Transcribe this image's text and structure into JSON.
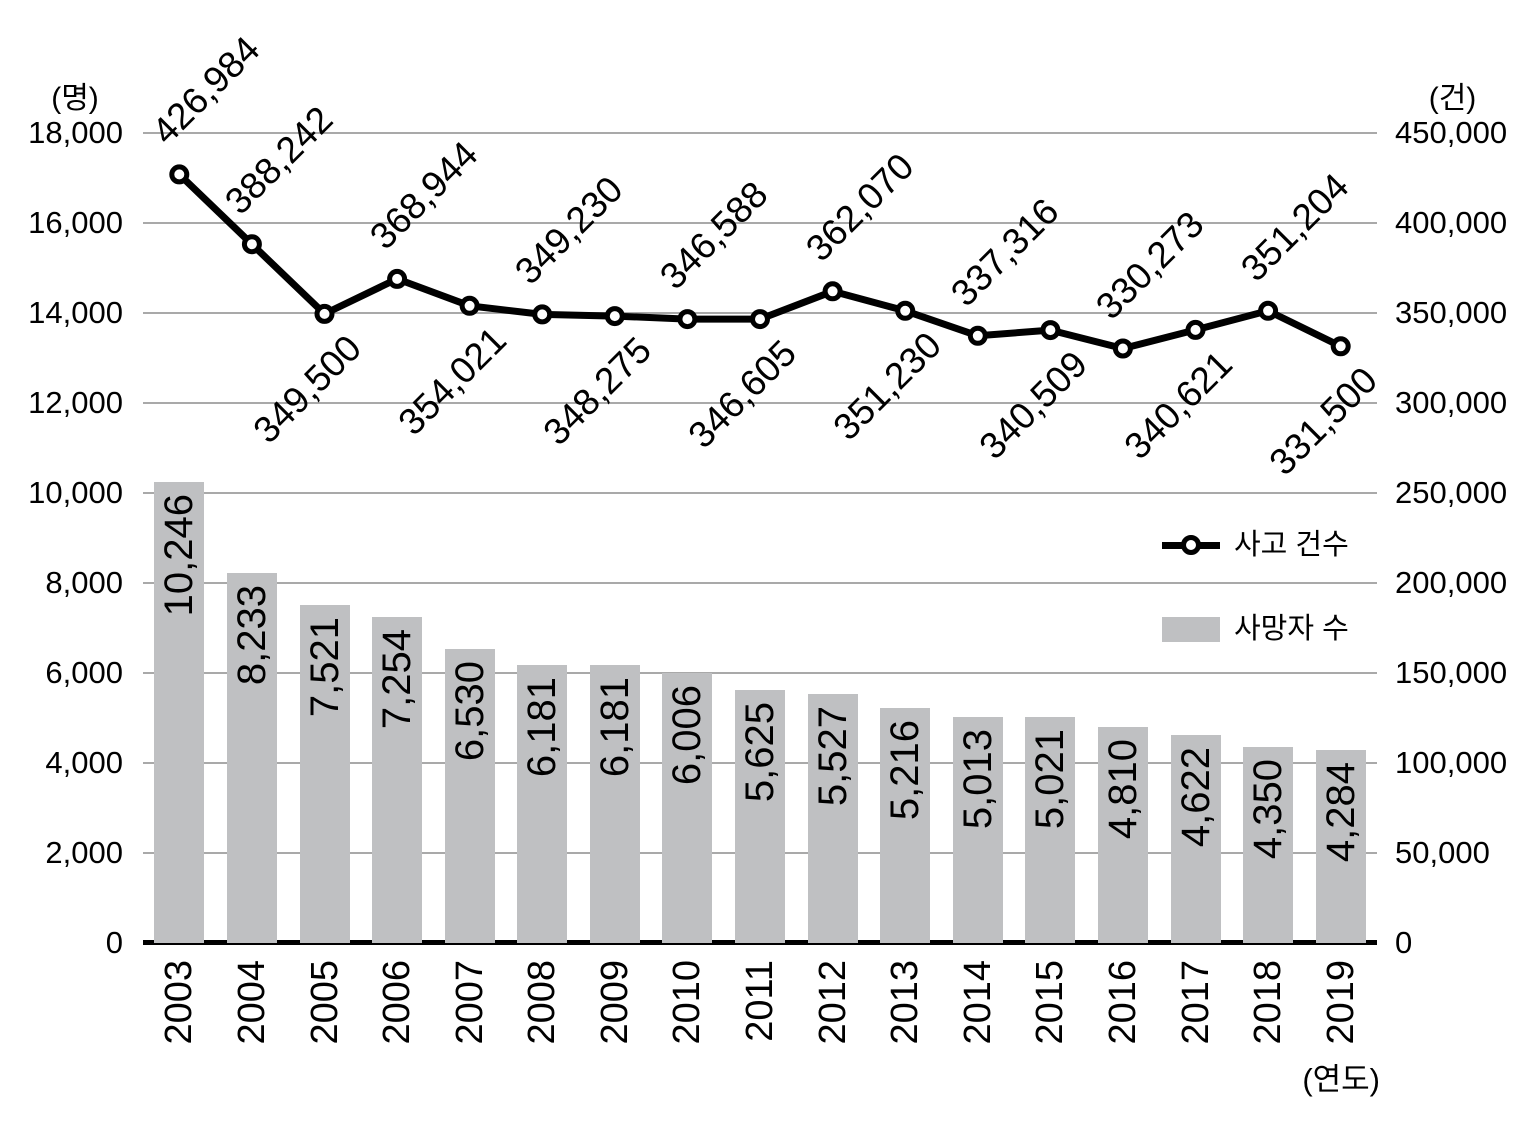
{
  "chart_data": {
    "type": "bar+line combo",
    "categories": [
      "2003",
      "2004",
      "2005",
      "2006",
      "2007",
      "2008",
      "2009",
      "2010",
      "2011",
      "2012",
      "2013",
      "2014",
      "2015",
      "2016",
      "2017",
      "2018",
      "2019"
    ],
    "series": [
      {
        "name": "사고 건수",
        "type": "line",
        "axis": "right",
        "values": [
          426984,
          388242,
          349500,
          368944,
          354021,
          349230,
          348275,
          346588,
          346605,
          362070,
          351230,
          337316,
          340509,
          330273,
          340621,
          351204,
          331500
        ]
      },
      {
        "name": "사망자 수",
        "type": "bar",
        "axis": "left",
        "values": [
          10246,
          8233,
          7521,
          7254,
          6530,
          6181,
          6181,
          6006,
          5625,
          5527,
          5216,
          5013,
          5021,
          4810,
          4622,
          4350,
          4284
        ]
      }
    ],
    "left_axis": {
      "unit_label": "(명)",
      "min": 0,
      "max": 18000,
      "step": 2000,
      "ticks": [
        "18,000",
        "16,000",
        "14,000",
        "12,000",
        "10,000",
        "8,000",
        "6,000",
        "4,000",
        "2,000",
        "0"
      ]
    },
    "right_axis": {
      "unit_label": "(건)",
      "min": 0,
      "max": 450000,
      "step": 50000,
      "ticks": [
        "450,000",
        "400,000",
        "350,000",
        "300,000",
        "250,000",
        "200,000",
        "150,000",
        "100,000",
        "50,000",
        "0"
      ]
    },
    "x_axis": {
      "unit_label": "(연도)"
    },
    "legend": {
      "position": "middle-right",
      "items": [
        "사고 건수",
        "사망자 수"
      ]
    },
    "grid": true,
    "colors": {
      "bar": "#bfc0c2",
      "line": "#000000",
      "gridline": "#a9a9a9",
      "marker_fill": "#ffffff",
      "text": "#000000"
    }
  }
}
